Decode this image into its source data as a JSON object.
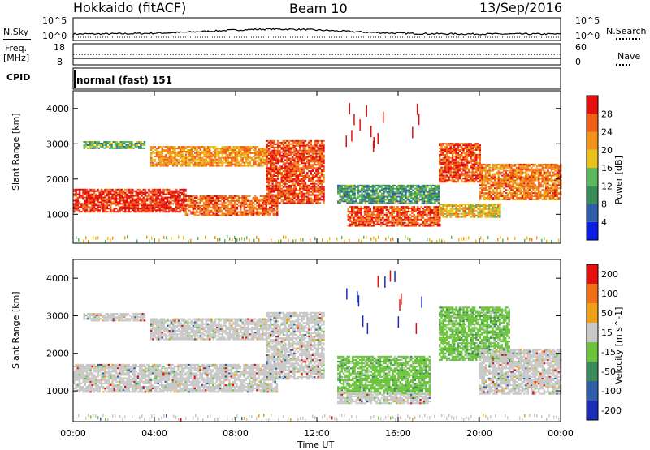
{
  "header": {
    "radar": "Hokkaido (fitACF)",
    "beam": "Beam 10",
    "date": "13/Sep/2016"
  },
  "top_strip": {
    "nsky_label": "N.Sky",
    "nsky_ticks": [
      "10^5",
      "10^0"
    ],
    "nsky_right_ticks": [
      "10^5",
      "10^0"
    ],
    "nsearch_label": "N.Search",
    "freq_label_1": "Freq.",
    "freq_label_2": "[MHz]",
    "freq_ticks": [
      "18",
      "8"
    ],
    "nave_ticks": [
      "60",
      "0"
    ],
    "nave_label": "Nave",
    "cpid_label": "CPID",
    "cpid_value": "normal (fast) 151"
  },
  "chart_data": [
    {
      "type": "heatmap",
      "name": "power",
      "ylabel": "Slant Range [km]",
      "xlabel": "Time UT",
      "ylim": [
        180,
        4500
      ],
      "y_ticks": [
        "1000",
        "2000",
        "3000",
        "4000"
      ],
      "x_ticks": [
        "00:00",
        "04:00",
        "08:00",
        "12:00",
        "16:00",
        "20:00",
        "00:00"
      ],
      "colorbar": {
        "label": "Power [dB]",
        "ticks": [
          "4",
          "8",
          "12",
          "16",
          "20",
          "24",
          "28"
        ],
        "colors": [
          "#0a1ee6",
          "#2f5fa8",
          "#3a8c5a",
          "#5cb85c",
          "#e8c21a",
          "#f0941c",
          "#f06018",
          "#e41010"
        ]
      },
      "echo_regions": [
        {
          "t0": 0.0,
          "t1": 5.5,
          "r0": 1050,
          "r1": 1700,
          "level": 0.9
        },
        {
          "t0": 5.5,
          "t1": 10.0,
          "r0": 950,
          "r1": 1500,
          "level": 0.8
        },
        {
          "t0": 3.8,
          "t1": 9.5,
          "r0": 2350,
          "r1": 2900,
          "level": 0.7
        },
        {
          "t0": 0.5,
          "t1": 3.5,
          "r0": 2850,
          "r1": 3050,
          "level": 0.4
        },
        {
          "t0": 9.5,
          "t1": 12.3,
          "r0": 1300,
          "r1": 3100,
          "level": 0.85
        },
        {
          "t0": 13.5,
          "t1": 18.0,
          "r0": 650,
          "r1": 1200,
          "level": 0.85
        },
        {
          "t0": 13.0,
          "t1": 18.0,
          "r0": 1300,
          "r1": 1800,
          "level": 0.35
        },
        {
          "t0": 18.0,
          "t1": 20.0,
          "r0": 1900,
          "r1": 3000,
          "level": 0.85
        },
        {
          "t0": 20.0,
          "t1": 24.0,
          "r0": 1400,
          "r1": 2400,
          "level": 0.75
        },
        {
          "t0": 18.0,
          "t1": 21.0,
          "r0": 900,
          "r1": 1300,
          "level": 0.6
        }
      ]
    },
    {
      "type": "heatmap",
      "name": "velocity",
      "ylabel": "Slant Range [km]",
      "xlabel": "Time UT",
      "ylim": [
        180,
        4500
      ],
      "y_ticks": [
        "1000",
        "2000",
        "3000",
        "4000"
      ],
      "x_ticks": [
        "00:00",
        "04:00",
        "08:00",
        "12:00",
        "16:00",
        "20:00",
        "00:00"
      ],
      "colorbar": {
        "label": "Velocity [m s^-1]",
        "ticks": [
          "200",
          "100",
          "50",
          "15",
          "-15",
          "-50",
          "-100",
          "-200"
        ],
        "colors": [
          "#1c2db8",
          "#2f5fa8",
          "#3a8c5a",
          "#6cc43c",
          "#c8c8c8",
          "#f0a018",
          "#f07018",
          "#e41010"
        ]
      },
      "echo_regions": [
        {
          "t0": 0.0,
          "t1": 10.0,
          "r0": 950,
          "r1": 1700,
          "level": "grey"
        },
        {
          "t0": 3.8,
          "t1": 9.5,
          "r0": 2350,
          "r1": 2900,
          "level": "grey"
        },
        {
          "t0": 0.5,
          "t1": 3.5,
          "r0": 2850,
          "r1": 3050,
          "level": "grey"
        },
        {
          "t0": 9.5,
          "t1": 12.3,
          "r0": 1300,
          "r1": 3100,
          "level": "grey"
        },
        {
          "t0": 13.0,
          "t1": 17.5,
          "r0": 900,
          "r1": 1900,
          "level": "green"
        },
        {
          "t0": 13.0,
          "t1": 17.5,
          "r0": 650,
          "r1": 950,
          "level": "grey"
        },
        {
          "t0": 18.0,
          "t1": 21.5,
          "r0": 1800,
          "r1": 3200,
          "level": "green"
        },
        {
          "t0": 20.0,
          "t1": 24.0,
          "r0": 900,
          "r1": 2100,
          "level": "grey"
        }
      ]
    }
  ]
}
